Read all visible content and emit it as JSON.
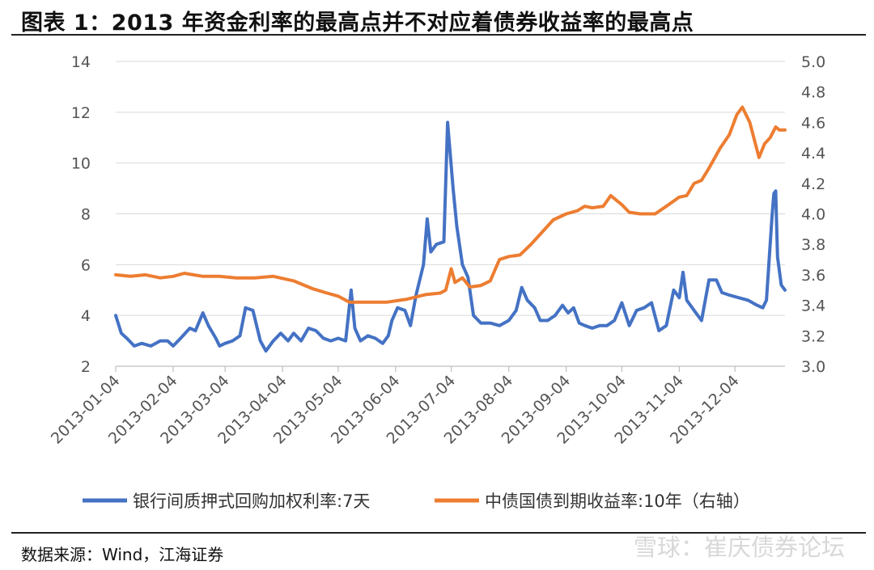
{
  "header": {
    "title": "图表 1：2013 年资金利率的最高点并不对应着债券收益率的最高点"
  },
  "footer": {
    "source": "数据来源：Wind，江海证券",
    "watermark": "雪球：崔庆债券论坛"
  },
  "chart_data": {
    "type": "line",
    "x_ticks": [
      "2013-01-04",
      "2013-02-04",
      "2013-03-04",
      "2013-04-04",
      "2013-05-04",
      "2013-06-04",
      "2013-07-04",
      "2013-08-04",
      "2013-09-04",
      "2013-10-04",
      "2013-11-04",
      "2013-12-04"
    ],
    "x_range": [
      "2013-01-04",
      "2013-12-31"
    ],
    "y_left": {
      "range": [
        2,
        14
      ],
      "ticks": [
        "2",
        "4",
        "6",
        "8",
        "10",
        "12",
        "14"
      ]
    },
    "y_right": {
      "range": [
        3.0,
        5.0
      ],
      "ticks": [
        "3.0",
        "3.2",
        "3.4",
        "3.6",
        "3.8",
        "4.0",
        "4.2",
        "4.4",
        "4.6",
        "4.8",
        "5.0"
      ]
    },
    "grid": true,
    "legend_position": "bottom",
    "series": [
      {
        "name": "银行间质押式回购加权利率:7天",
        "axis": "left",
        "color": "#4472C4",
        "points": [
          [
            "2013-01-04",
            4.0
          ],
          [
            "2013-01-07",
            3.3
          ],
          [
            "2013-01-10",
            3.1
          ],
          [
            "2013-01-14",
            2.8
          ],
          [
            "2013-01-18",
            2.9
          ],
          [
            "2013-01-23",
            2.8
          ],
          [
            "2013-01-28",
            3.0
          ],
          [
            "2013-02-01",
            3.0
          ],
          [
            "2013-02-04",
            2.8
          ],
          [
            "2013-02-08",
            3.1
          ],
          [
            "2013-02-13",
            3.5
          ],
          [
            "2013-02-16",
            3.4
          ],
          [
            "2013-02-20",
            4.1
          ],
          [
            "2013-02-23",
            3.6
          ],
          [
            "2013-02-27",
            3.1
          ],
          [
            "2013-03-01",
            2.8
          ],
          [
            "2013-03-04",
            2.9
          ],
          [
            "2013-03-08",
            3.0
          ],
          [
            "2013-03-12",
            3.2
          ],
          [
            "2013-03-15",
            4.3
          ],
          [
            "2013-03-19",
            4.2
          ],
          [
            "2013-03-23",
            3.0
          ],
          [
            "2013-03-26",
            2.6
          ],
          [
            "2013-03-30",
            3.0
          ],
          [
            "2013-04-03",
            3.3
          ],
          [
            "2013-04-07",
            3.0
          ],
          [
            "2013-04-10",
            3.3
          ],
          [
            "2013-04-14",
            3.0
          ],
          [
            "2013-04-18",
            3.5
          ],
          [
            "2013-04-22",
            3.4
          ],
          [
            "2013-04-26",
            3.1
          ],
          [
            "2013-04-30",
            3.0
          ],
          [
            "2013-05-04",
            3.1
          ],
          [
            "2013-05-08",
            3.0
          ],
          [
            "2013-05-11",
            5.0
          ],
          [
            "2013-05-13",
            3.5
          ],
          [
            "2013-05-16",
            3.0
          ],
          [
            "2013-05-20",
            3.2
          ],
          [
            "2013-05-24",
            3.1
          ],
          [
            "2013-05-28",
            2.9
          ],
          [
            "2013-05-31",
            3.2
          ],
          [
            "2013-06-02",
            3.8
          ],
          [
            "2013-06-05",
            4.3
          ],
          [
            "2013-06-09",
            4.2
          ],
          [
            "2013-06-12",
            3.6
          ],
          [
            "2013-06-15",
            4.8
          ],
          [
            "2013-06-19",
            6.0
          ],
          [
            "2013-06-21",
            7.8
          ],
          [
            "2013-06-23",
            6.5
          ],
          [
            "2013-06-26",
            6.8
          ],
          [
            "2013-06-30",
            6.9
          ],
          [
            "2013-07-02",
            11.6
          ],
          [
            "2013-07-05",
            9.0
          ],
          [
            "2013-07-07",
            7.5
          ],
          [
            "2013-07-10",
            6.0
          ],
          [
            "2013-07-13",
            5.5
          ],
          [
            "2013-07-16",
            4.0
          ],
          [
            "2013-07-20",
            3.7
          ],
          [
            "2013-07-25",
            3.7
          ],
          [
            "2013-07-30",
            3.6
          ],
          [
            "2013-08-04",
            3.8
          ],
          [
            "2013-08-08",
            4.2
          ],
          [
            "2013-08-11",
            5.1
          ],
          [
            "2013-08-14",
            4.6
          ],
          [
            "2013-08-18",
            4.3
          ],
          [
            "2013-08-21",
            3.8
          ],
          [
            "2013-08-25",
            3.8
          ],
          [
            "2013-08-29",
            4.0
          ],
          [
            "2013-09-02",
            4.4
          ],
          [
            "2013-09-05",
            4.1
          ],
          [
            "2013-09-08",
            4.3
          ],
          [
            "2013-09-11",
            3.7
          ],
          [
            "2013-09-14",
            3.6
          ],
          [
            "2013-09-18",
            3.5
          ],
          [
            "2013-09-22",
            3.6
          ],
          [
            "2013-09-26",
            3.6
          ],
          [
            "2013-09-30",
            3.8
          ],
          [
            "2013-10-04",
            4.5
          ],
          [
            "2013-10-08",
            3.6
          ],
          [
            "2013-10-12",
            4.2
          ],
          [
            "2013-10-16",
            4.3
          ],
          [
            "2013-10-20",
            4.5
          ],
          [
            "2013-10-24",
            3.4
          ],
          [
            "2013-10-28",
            3.6
          ],
          [
            "2013-11-01",
            5.0
          ],
          [
            "2013-11-04",
            4.7
          ],
          [
            "2013-11-06",
            5.7
          ],
          [
            "2013-11-08",
            4.6
          ],
          [
            "2013-11-12",
            4.2
          ],
          [
            "2013-11-16",
            3.8
          ],
          [
            "2013-11-20",
            5.4
          ],
          [
            "2013-11-24",
            5.4
          ],
          [
            "2013-11-27",
            4.9
          ],
          [
            "2013-12-01",
            4.8
          ],
          [
            "2013-12-06",
            4.7
          ],
          [
            "2013-12-11",
            4.6
          ],
          [
            "2013-12-16",
            4.4
          ],
          [
            "2013-12-19",
            4.3
          ],
          [
            "2013-12-21",
            4.6
          ],
          [
            "2013-12-24",
            7.9
          ],
          [
            "2013-12-25",
            8.8
          ],
          [
            "2013-12-26",
            8.9
          ],
          [
            "2013-12-27",
            6.3
          ],
          [
            "2013-12-29",
            5.2
          ],
          [
            "2013-12-31",
            5.0
          ]
        ]
      },
      {
        "name": "中债国债到期收益率:10年（右轴）",
        "axis": "right",
        "color": "#ED7D31",
        "points": [
          [
            "2013-01-04",
            3.6
          ],
          [
            "2013-01-12",
            3.59
          ],
          [
            "2013-01-20",
            3.6
          ],
          [
            "2013-01-28",
            3.58
          ],
          [
            "2013-02-04",
            3.59
          ],
          [
            "2013-02-10",
            3.61
          ],
          [
            "2013-02-20",
            3.59
          ],
          [
            "2013-03-01",
            3.59
          ],
          [
            "2013-03-10",
            3.58
          ],
          [
            "2013-03-20",
            3.58
          ],
          [
            "2013-03-30",
            3.59
          ],
          [
            "2013-04-10",
            3.56
          ],
          [
            "2013-04-20",
            3.51
          ],
          [
            "2013-04-28",
            3.48
          ],
          [
            "2013-05-04",
            3.46
          ],
          [
            "2013-05-10",
            3.42
          ],
          [
            "2013-05-20",
            3.42
          ],
          [
            "2013-05-30",
            3.42
          ],
          [
            "2013-06-10",
            3.44
          ],
          [
            "2013-06-20",
            3.47
          ],
          [
            "2013-06-28",
            3.48
          ],
          [
            "2013-07-01",
            3.5
          ],
          [
            "2013-07-04",
            3.64
          ],
          [
            "2013-07-06",
            3.55
          ],
          [
            "2013-07-10",
            3.58
          ],
          [
            "2013-07-14",
            3.52
          ],
          [
            "2013-07-20",
            3.53
          ],
          [
            "2013-07-25",
            3.56
          ],
          [
            "2013-07-30",
            3.7
          ],
          [
            "2013-08-04",
            3.72
          ],
          [
            "2013-08-10",
            3.73
          ],
          [
            "2013-08-16",
            3.8
          ],
          [
            "2013-08-22",
            3.88
          ],
          [
            "2013-08-28",
            3.96
          ],
          [
            "2013-09-04",
            4.0
          ],
          [
            "2013-09-10",
            4.02
          ],
          [
            "2013-09-14",
            4.05
          ],
          [
            "2013-09-18",
            4.04
          ],
          [
            "2013-09-24",
            4.05
          ],
          [
            "2013-09-28",
            4.12
          ],
          [
            "2013-10-04",
            4.06
          ],
          [
            "2013-10-08",
            4.01
          ],
          [
            "2013-10-14",
            4.0
          ],
          [
            "2013-10-22",
            4.0
          ],
          [
            "2013-10-28",
            4.05
          ],
          [
            "2013-11-04",
            4.11
          ],
          [
            "2013-11-08",
            4.12
          ],
          [
            "2013-11-12",
            4.2
          ],
          [
            "2013-11-16",
            4.22
          ],
          [
            "2013-11-20",
            4.3
          ],
          [
            "2013-11-26",
            4.43
          ],
          [
            "2013-12-01",
            4.52
          ],
          [
            "2013-12-05",
            4.65
          ],
          [
            "2013-12-08",
            4.7
          ],
          [
            "2013-12-12",
            4.6
          ],
          [
            "2013-12-17",
            4.37
          ],
          [
            "2013-12-20",
            4.46
          ],
          [
            "2013-12-23",
            4.5
          ],
          [
            "2013-12-26",
            4.57
          ],
          [
            "2013-12-28",
            4.55
          ],
          [
            "2013-12-31",
            4.55
          ]
        ]
      }
    ]
  }
}
